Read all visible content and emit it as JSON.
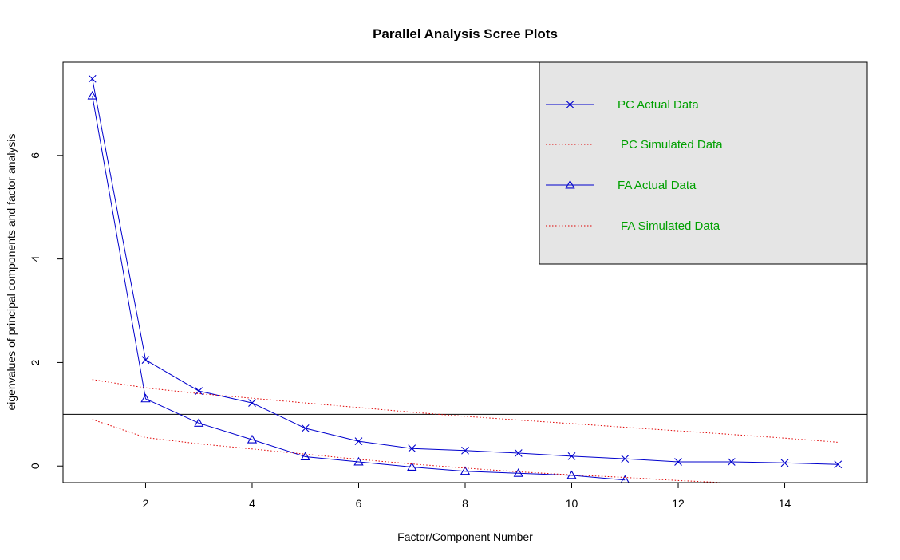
{
  "chart_data": {
    "type": "line",
    "title": "Parallel Analysis Scree Plots",
    "xlabel": "Factor/Component Number",
    "ylabel": "eigenvalues of principal components and factor analysis",
    "xlim": [
      0.45,
      15.55
    ],
    "ylim": [
      -0.32,
      7.8
    ],
    "x_ticks": [
      2,
      4,
      6,
      8,
      10,
      12,
      14
    ],
    "x_tick_labels": [
      "2",
      "4",
      "6",
      "8",
      "10",
      "12",
      "14"
    ],
    "y_ticks": [
      0,
      2,
      4,
      6
    ],
    "y_tick_labels": [
      "0",
      "2",
      "4",
      "6"
    ],
    "reference_line_y": 1,
    "legend_position": "top-right",
    "series": [
      {
        "name": "PC  Actual Data",
        "style": "solid",
        "marker": "x",
        "color": "#0000cd",
        "x": [
          1,
          2,
          3,
          4,
          5,
          6,
          7,
          8,
          9,
          10,
          11,
          12,
          13,
          14,
          15
        ],
        "values": [
          7.48,
          2.05,
          1.45,
          1.22,
          0.73,
          0.48,
          0.34,
          0.3,
          0.25,
          0.19,
          0.14,
          0.08,
          0.08,
          0.06,
          0.03
        ]
      },
      {
        "name": "PC  Simulated Data",
        "style": "dotted",
        "marker": "none",
        "color": "#e00000",
        "x": [
          1,
          2,
          3,
          4,
          5,
          6,
          7,
          8,
          9,
          10,
          11,
          12,
          13,
          14,
          15
        ],
        "values": [
          1.67,
          1.51,
          1.4,
          1.31,
          1.22,
          1.13,
          1.04,
          0.96,
          0.89,
          0.82,
          0.75,
          0.68,
          0.61,
          0.54,
          0.46
        ]
      },
      {
        "name": "FA  Actual Data",
        "style": "solid",
        "marker": "triangle",
        "color": "#0000cd",
        "x": [
          1,
          2,
          3,
          4,
          5,
          6,
          7,
          8,
          9,
          10,
          11
        ],
        "values": [
          7.15,
          1.3,
          0.83,
          0.51,
          0.18,
          0.08,
          -0.02,
          -0.1,
          -0.14,
          -0.18,
          -0.27
        ]
      },
      {
        "name": "FA  Simulated Data",
        "style": "dotted",
        "marker": "none",
        "color": "#e00000",
        "x": [
          1,
          2,
          3,
          4,
          5,
          6,
          7,
          8,
          9,
          10,
          11,
          12,
          12.85
        ],
        "values": [
          0.9,
          0.55,
          0.43,
          0.33,
          0.23,
          0.13,
          0.04,
          -0.04,
          -0.11,
          -0.17,
          -0.22,
          -0.28,
          -0.32
        ]
      }
    ],
    "colors": {
      "legend_background": "#e5e5e5",
      "legend_text": "#00a000",
      "axes": "#000000"
    }
  }
}
